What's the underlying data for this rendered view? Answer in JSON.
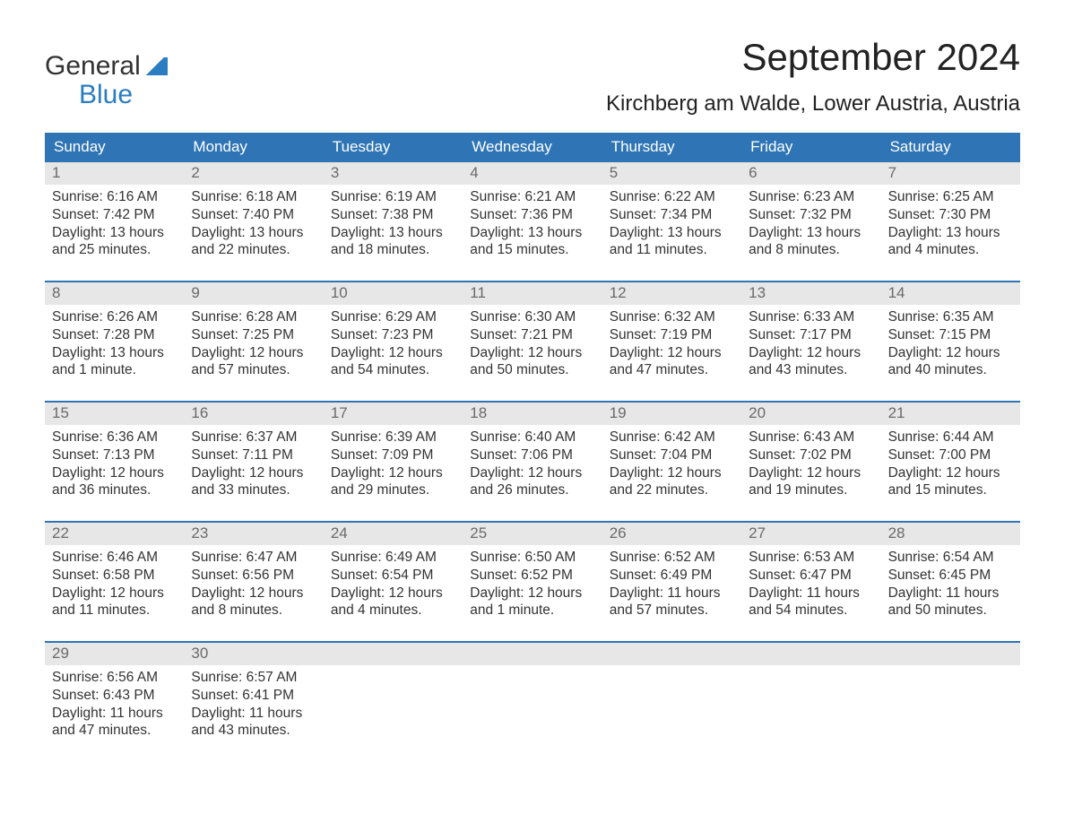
{
  "logo": {
    "line1": "General",
    "line2": "Blue"
  },
  "title": "September 2024",
  "location": "Kirchberg am Walde, Lower Austria, Austria",
  "colors": {
    "header_bg": "#2f75b5",
    "header_text": "#ffffff",
    "date_bg": "#e7e7e7",
    "date_text": "#6a6a6a",
    "week_border": "#2f75b5",
    "body_text": "#333333",
    "logo_accent": "#2b7cc0",
    "page_bg": "#ffffff"
  },
  "typography": {
    "title_fontsize": 42,
    "location_fontsize": 24,
    "dayhead_fontsize": 17,
    "date_fontsize": 17,
    "body_fontsize": 15.5,
    "logo_fontsize": 30
  },
  "layout": {
    "columns": 7,
    "rows": 5
  },
  "day_labels": [
    "Sunday",
    "Monday",
    "Tuesday",
    "Wednesday",
    "Thursday",
    "Friday",
    "Saturday"
  ],
  "sunrise_label": "Sunrise: ",
  "sunset_label": "Sunset: ",
  "daylight_label": "Daylight: ",
  "weeks": [
    [
      {
        "date": "1",
        "sunrise": "6:16 AM",
        "sunset": "7:42 PM",
        "daylight": "13 hours and 25 minutes."
      },
      {
        "date": "2",
        "sunrise": "6:18 AM",
        "sunset": "7:40 PM",
        "daylight": "13 hours and 22 minutes."
      },
      {
        "date": "3",
        "sunrise": "6:19 AM",
        "sunset": "7:38 PM",
        "daylight": "13 hours and 18 minutes."
      },
      {
        "date": "4",
        "sunrise": "6:21 AM",
        "sunset": "7:36 PM",
        "daylight": "13 hours and 15 minutes."
      },
      {
        "date": "5",
        "sunrise": "6:22 AM",
        "sunset": "7:34 PM",
        "daylight": "13 hours and 11 minutes."
      },
      {
        "date": "6",
        "sunrise": "6:23 AM",
        "sunset": "7:32 PM",
        "daylight": "13 hours and 8 minutes."
      },
      {
        "date": "7",
        "sunrise": "6:25 AM",
        "sunset": "7:30 PM",
        "daylight": "13 hours and 4 minutes."
      }
    ],
    [
      {
        "date": "8",
        "sunrise": "6:26 AM",
        "sunset": "7:28 PM",
        "daylight": "13 hours and 1 minute."
      },
      {
        "date": "9",
        "sunrise": "6:28 AM",
        "sunset": "7:25 PM",
        "daylight": "12 hours and 57 minutes."
      },
      {
        "date": "10",
        "sunrise": "6:29 AM",
        "sunset": "7:23 PM",
        "daylight": "12 hours and 54 minutes."
      },
      {
        "date": "11",
        "sunrise": "6:30 AM",
        "sunset": "7:21 PM",
        "daylight": "12 hours and 50 minutes."
      },
      {
        "date": "12",
        "sunrise": "6:32 AM",
        "sunset": "7:19 PM",
        "daylight": "12 hours and 47 minutes."
      },
      {
        "date": "13",
        "sunrise": "6:33 AM",
        "sunset": "7:17 PM",
        "daylight": "12 hours and 43 minutes."
      },
      {
        "date": "14",
        "sunrise": "6:35 AM",
        "sunset": "7:15 PM",
        "daylight": "12 hours and 40 minutes."
      }
    ],
    [
      {
        "date": "15",
        "sunrise": "6:36 AM",
        "sunset": "7:13 PM",
        "daylight": "12 hours and 36 minutes."
      },
      {
        "date": "16",
        "sunrise": "6:37 AM",
        "sunset": "7:11 PM",
        "daylight": "12 hours and 33 minutes."
      },
      {
        "date": "17",
        "sunrise": "6:39 AM",
        "sunset": "7:09 PM",
        "daylight": "12 hours and 29 minutes."
      },
      {
        "date": "18",
        "sunrise": "6:40 AM",
        "sunset": "7:06 PM",
        "daylight": "12 hours and 26 minutes."
      },
      {
        "date": "19",
        "sunrise": "6:42 AM",
        "sunset": "7:04 PM",
        "daylight": "12 hours and 22 minutes."
      },
      {
        "date": "20",
        "sunrise": "6:43 AM",
        "sunset": "7:02 PM",
        "daylight": "12 hours and 19 minutes."
      },
      {
        "date": "21",
        "sunrise": "6:44 AM",
        "sunset": "7:00 PM",
        "daylight": "12 hours and 15 minutes."
      }
    ],
    [
      {
        "date": "22",
        "sunrise": "6:46 AM",
        "sunset": "6:58 PM",
        "daylight": "12 hours and 11 minutes."
      },
      {
        "date": "23",
        "sunrise": "6:47 AM",
        "sunset": "6:56 PM",
        "daylight": "12 hours and 8 minutes."
      },
      {
        "date": "24",
        "sunrise": "6:49 AM",
        "sunset": "6:54 PM",
        "daylight": "12 hours and 4 minutes."
      },
      {
        "date": "25",
        "sunrise": "6:50 AM",
        "sunset": "6:52 PM",
        "daylight": "12 hours and 1 minute."
      },
      {
        "date": "26",
        "sunrise": "6:52 AM",
        "sunset": "6:49 PM",
        "daylight": "11 hours and 57 minutes."
      },
      {
        "date": "27",
        "sunrise": "6:53 AM",
        "sunset": "6:47 PM",
        "daylight": "11 hours and 54 minutes."
      },
      {
        "date": "28",
        "sunrise": "6:54 AM",
        "sunset": "6:45 PM",
        "daylight": "11 hours and 50 minutes."
      }
    ],
    [
      {
        "date": "29",
        "sunrise": "6:56 AM",
        "sunset": "6:43 PM",
        "daylight": "11 hours and 47 minutes."
      },
      {
        "date": "30",
        "sunrise": "6:57 AM",
        "sunset": "6:41 PM",
        "daylight": "11 hours and 43 minutes."
      },
      {
        "empty": true
      },
      {
        "empty": true
      },
      {
        "empty": true
      },
      {
        "empty": true
      },
      {
        "empty": true
      }
    ]
  ]
}
